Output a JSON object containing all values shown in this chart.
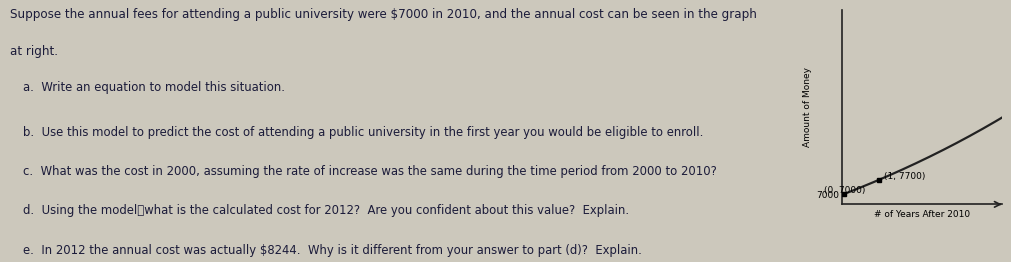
{
  "background_color": "#ccc8bc",
  "text_color": "#1c1c3a",
  "intro_text_line1": "Suppose the annual fees for attending a public university were $7000 in 2010, and the annual cost can be seen in the graph",
  "intro_text_line2": "at right.",
  "questions": [
    "a.  Write an equation to model this situation.",
    "b.  Use this model to predict the cost of attending a public university in the first year you would be eligible to enroll.",
    "c.  What was the cost in 2000, assuming the rate of increase was the same during the time period from 2000 to 2010?",
    "d.  Using the model⎯what is the calculated cost for 2012?  Are you confident about this value?  Explain.",
    "e.  In 2012 the annual cost was actually $8244.  Why is it different from your answer to part (d)?  Explain."
  ],
  "bold_parts": [
    "$7000",
    "2010"
  ],
  "graph": {
    "x_label": "# of Years After 2010",
    "y_label": "Amount of Money",
    "point1_label": "(0, 7000)",
    "point2_label": "(1, 7700)",
    "point1": [
      0,
      7000
    ],
    "point2": [
      1,
      7700
    ],
    "x_min": -0.05,
    "x_max": 4.5,
    "y_min": 6500,
    "y_max": 16000,
    "growth_rate": 1.1,
    "base_value": 7000,
    "curve_color": "#222222",
    "axis_color": "#222222"
  }
}
